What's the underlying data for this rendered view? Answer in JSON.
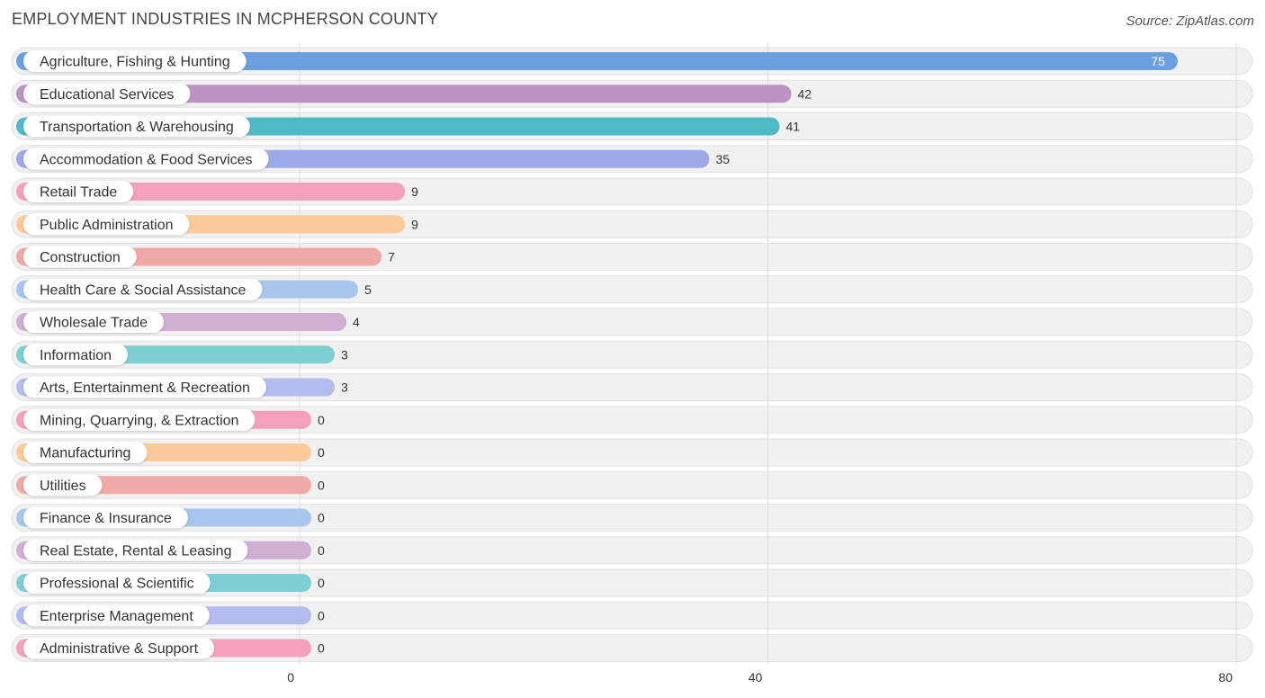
{
  "title": "EMPLOYMENT INDUSTRIES IN MCPHERSON COUNTY",
  "source": "Source: ZipAtlas.com",
  "chart_data": {
    "type": "bar",
    "orientation": "horizontal",
    "title": "EMPLOYMENT INDUSTRIES IN MCPHERSON COUNTY",
    "xlabel": "",
    "ylabel": "",
    "xlim": [
      0,
      80
    ],
    "xticks": [
      0,
      40,
      80
    ],
    "grid": true,
    "categories": [
      "Agriculture, Fishing & Hunting",
      "Educational Services",
      "Transportation & Warehousing",
      "Accommodation & Food Services",
      "Retail Trade",
      "Public Administration",
      "Construction",
      "Health Care & Social Assistance",
      "Wholesale Trade",
      "Information",
      "Arts, Entertainment & Recreation",
      "Mining, Quarrying, & Extraction",
      "Manufacturing",
      "Utilities",
      "Finance & Insurance",
      "Real Estate, Rental & Leasing",
      "Professional & Scientific",
      "Enterprise Management",
      "Administrative & Support"
    ],
    "values": [
      75,
      42,
      41,
      35,
      9,
      9,
      7,
      5,
      4,
      3,
      3,
      0,
      0,
      0,
      0,
      0,
      0,
      0,
      0
    ],
    "colors": [
      "#6a9fe0",
      "#bb94c4",
      "#4fbac6",
      "#9ea9e8",
      "#f5a0ba",
      "#fbc99a",
      "#efaaa8",
      "#a8c5ee",
      "#cfaed2",
      "#7ecfd2",
      "#b4bcee",
      "#f5a0ba",
      "#fbc99a",
      "#efaaa8",
      "#a8c5ee",
      "#cfaed2",
      "#7ecfd2",
      "#b4bcee",
      "#f5a0ba"
    ]
  }
}
